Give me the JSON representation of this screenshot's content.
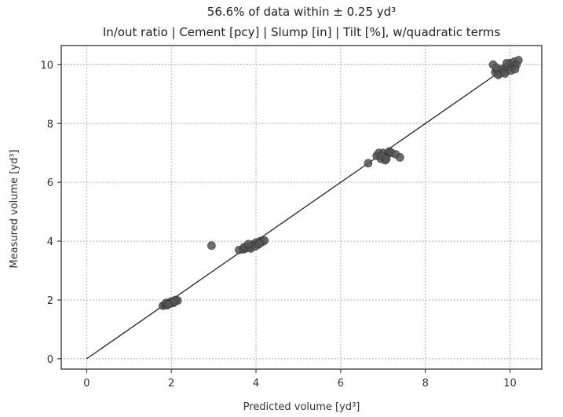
{
  "chart_data": {
    "type": "scatter",
    "title_line1": "56.6% of data within ± 0.25 yd³",
    "title_line2": "In/out ratio | Cement [pcy] | Slump [in] | Tilt [%], w/quadratic terms",
    "xlabel": "Predicted volume [yd³]",
    "ylabel": "Measured volume [yd³]",
    "xlim": [
      -0.6,
      10.75
    ],
    "ylim": [
      -0.35,
      10.65
    ],
    "xticks": [
      0,
      2,
      4,
      6,
      8,
      10
    ],
    "yticks": [
      0,
      2,
      4,
      6,
      8,
      10
    ],
    "grid": true,
    "reference_line": {
      "x": [
        0,
        10
      ],
      "y": [
        0,
        10
      ]
    },
    "series": [
      {
        "x": [
          1.8,
          1.85,
          1.9,
          1.95,
          2.0,
          2.05,
          2.1,
          2.15,
          1.88,
          1.98,
          2.08,
          1.92,
          2.95,
          3.6,
          3.7,
          3.75,
          3.8,
          3.85,
          3.9,
          3.95,
          4.0,
          4.05,
          4.1,
          4.15,
          4.2,
          3.72,
          3.88,
          3.98,
          4.08,
          3.82,
          6.65,
          6.85,
          6.9,
          6.95,
          7.0,
          7.05,
          7.1,
          7.15,
          7.2,
          7.3,
          7.4,
          6.98,
          7.08,
          9.6,
          9.65,
          9.7,
          9.75,
          9.8,
          9.85,
          9.9,
          9.95,
          10.0,
          10.05,
          10.1,
          10.15,
          10.2,
          9.72,
          9.88,
          10.02,
          10.12,
          9.68,
          9.92
        ],
        "y": [
          1.8,
          1.85,
          1.82,
          1.9,
          1.95,
          1.9,
          2.0,
          1.98,
          1.9,
          1.88,
          1.95,
          1.85,
          3.85,
          3.7,
          3.72,
          3.75,
          3.8,
          3.78,
          3.85,
          3.9,
          3.95,
          3.88,
          4.0,
          3.98,
          4.02,
          3.8,
          3.75,
          3.82,
          3.92,
          3.9,
          6.65,
          6.9,
          7.0,
          6.8,
          7.0,
          6.75,
          6.95,
          7.05,
          7.0,
          6.95,
          6.85,
          6.9,
          6.8,
          10.0,
          9.75,
          9.8,
          9.7,
          9.85,
          9.75,
          9.9,
          9.95,
          10.05,
          9.9,
          10.1,
          10.0,
          10.15,
          9.65,
          9.7,
          9.8,
          9.85,
          9.9,
          10.05
        ]
      }
    ]
  }
}
